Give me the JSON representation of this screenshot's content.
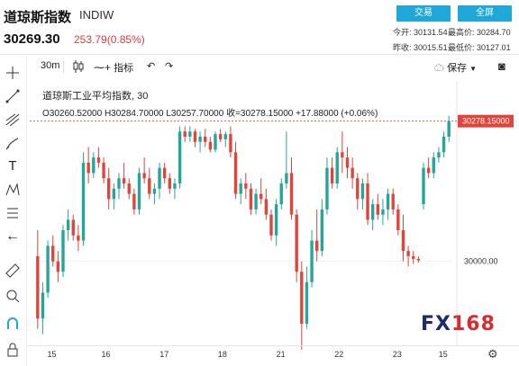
{
  "header": {
    "title": "道琼斯指数",
    "symbol": "INDIW",
    "price": "30269.30",
    "change": "253.79(0.85%)",
    "buttons": [
      "交易",
      "全屏"
    ],
    "stats": {
      "today_open_label": "今开:",
      "today_open": "30131.54",
      "high_label": "最高价:",
      "high": "30284.70",
      "prev_close_label": "昨收:",
      "prev_close": "30015.51",
      "low_label": "最低价:",
      "low": "30127.01"
    }
  },
  "toolbar": {
    "interval": "30m",
    "indicators_label": "指标",
    "save_label": "保存"
  },
  "legend": {
    "line1": "道琼斯工业平均指数, 30",
    "line2": "O30260.52000  H30284.70000  L30257.70000  收=30278.15000  +17.88000 (+0.06%)"
  },
  "colors": {
    "up": "#26a69a",
    "down": "#e0443a",
    "accent": "#1fa7d8",
    "price_line": "#e0443a"
  },
  "sidebar_icons": [
    "crosshair-icon",
    "trendline-icon",
    "fib-icon",
    "brush-icon",
    "text-icon",
    "pattern-icon",
    "measure-icon",
    "back-arrow-icon",
    "ruler-icon",
    "zoom-icon",
    "magnet-icon",
    "lock-icon"
  ],
  "watermark": {
    "part1": "FX",
    "part2": "168"
  },
  "chart_data": {
    "type": "candlestick",
    "y_axis": {
      "ticks": [
        30000.0
      ],
      "price_label": "30278.15000"
    },
    "x_axis": {
      "ticks": [
        "15",
        "16",
        "17",
        "18",
        "21",
        "22",
        "23",
        "15"
      ]
    },
    "ylim": [
      29880,
      30330
    ],
    "ohlc": [
      [
        30010,
        30060,
        29870,
        29890
      ],
      [
        29890,
        29960,
        29860,
        29940
      ],
      [
        29940,
        30040,
        29930,
        30030
      ],
      [
        30030,
        30050,
        29990,
        30000
      ],
      [
        30000,
        30020,
        29960,
        29980
      ],
      [
        29980,
        30070,
        29970,
        30060
      ],
      [
        30060,
        30100,
        30040,
        30080
      ],
      [
        30080,
        30090,
        30040,
        30050
      ],
      [
        30050,
        30070,
        30020,
        30040
      ],
      [
        30040,
        30210,
        30030,
        30190
      ],
      [
        30190,
        30220,
        30150,
        30170
      ],
      [
        30170,
        30210,
        30160,
        30200
      ],
      [
        30200,
        30220,
        30180,
        30190
      ],
      [
        30190,
        30200,
        30150,
        30160
      ],
      [
        30160,
        30180,
        30100,
        30120
      ],
      [
        30120,
        30150,
        30100,
        30140
      ],
      [
        30140,
        30170,
        30120,
        30160
      ],
      [
        30160,
        30190,
        30140,
        30150
      ],
      [
        30150,
        30160,
        30120,
        30130
      ],
      [
        30130,
        30140,
        30090,
        30100
      ],
      [
        30100,
        30180,
        30090,
        30170
      ],
      [
        30170,
        30200,
        30150,
        30160
      ],
      [
        30160,
        30180,
        30120,
        30130
      ],
      [
        30130,
        30150,
        30110,
        30140
      ],
      [
        30140,
        30190,
        30120,
        30180
      ],
      [
        30180,
        30190,
        30150,
        30160
      ],
      [
        30160,
        30170,
        30130,
        30140
      ],
      [
        30140,
        30160,
        30120,
        30150
      ],
      [
        30150,
        30260,
        30140,
        30250
      ],
      [
        30250,
        30260,
        30230,
        30240
      ],
      [
        30240,
        30260,
        30230,
        30250
      ],
      [
        30250,
        30255,
        30220,
        30230
      ],
      [
        30230,
        30250,
        30210,
        30240
      ],
      [
        30240,
        30255,
        30220,
        30230
      ],
      [
        30230,
        30240,
        30210,
        30215
      ],
      [
        30215,
        30250,
        30210,
        30245
      ],
      [
        30245,
        30255,
        30230,
        30235
      ],
      [
        30235,
        30250,
        30220,
        30245
      ],
      [
        30245,
        30260,
        30200,
        30210
      ],
      [
        30210,
        30230,
        30120,
        30130
      ],
      [
        30130,
        30160,
        30110,
        30150
      ],
      [
        30150,
        30170,
        30120,
        30140
      ],
      [
        30140,
        30150,
        30090,
        30100
      ],
      [
        30100,
        30140,
        30090,
        30130
      ],
      [
        30130,
        30160,
        30110,
        30120
      ],
      [
        30120,
        30140,
        30080,
        30090
      ],
      [
        30090,
        30100,
        30040,
        30050
      ],
      [
        30050,
        30120,
        30030,
        30110
      ],
      [
        30110,
        30160,
        30100,
        30150
      ],
      [
        30150,
        30250,
        30140,
        30170
      ],
      [
        30170,
        30200,
        30080,
        30090
      ],
      [
        30090,
        30100,
        29960,
        29980
      ],
      [
        29980,
        30000,
        29830,
        29880
      ],
      [
        29880,
        29990,
        29870,
        29960
      ],
      [
        29960,
        30060,
        29950,
        30040
      ],
      [
        30040,
        30100,
        30000,
        30020
      ],
      [
        30020,
        30120,
        30010,
        30100
      ],
      [
        30100,
        30200,
        30090,
        30180
      ],
      [
        30180,
        30200,
        30140,
        30150
      ],
      [
        30150,
        30220,
        30140,
        30210
      ],
      [
        30210,
        30250,
        30170,
        30200
      ],
      [
        30200,
        30220,
        30160,
        30180
      ],
      [
        30180,
        30200,
        30140,
        30160
      ],
      [
        30160,
        30170,
        30100,
        30120
      ],
      [
        30120,
        30160,
        30100,
        30150
      ],
      [
        30150,
        30170,
        30070,
        30080
      ],
      [
        30080,
        30120,
        30060,
        30110
      ],
      [
        30110,
        30130,
        30080,
        30090
      ],
      [
        30090,
        30120,
        30070,
        30100
      ],
      [
        30100,
        30140,
        30080,
        30130
      ],
      [
        30130,
        30140,
        30090,
        30100
      ],
      [
        30100,
        30110,
        30050,
        30060
      ],
      [
        30060,
        30090,
        30000,
        30020
      ],
      [
        30020,
        30030,
        29990,
        30010
      ],
      [
        30010,
        30020,
        29995,
        30005
      ],
      [
        30005,
        30010,
        29998,
        30002
      ],
      [
        30110,
        30190,
        30100,
        30180
      ],
      [
        30180,
        30200,
        30160,
        30170
      ],
      [
        30170,
        30210,
        30160,
        30200
      ],
      [
        30200,
        30220,
        30190,
        30210
      ],
      [
        30210,
        30250,
        30200,
        30240
      ],
      [
        30240,
        30280,
        30230,
        30270
      ]
    ]
  }
}
